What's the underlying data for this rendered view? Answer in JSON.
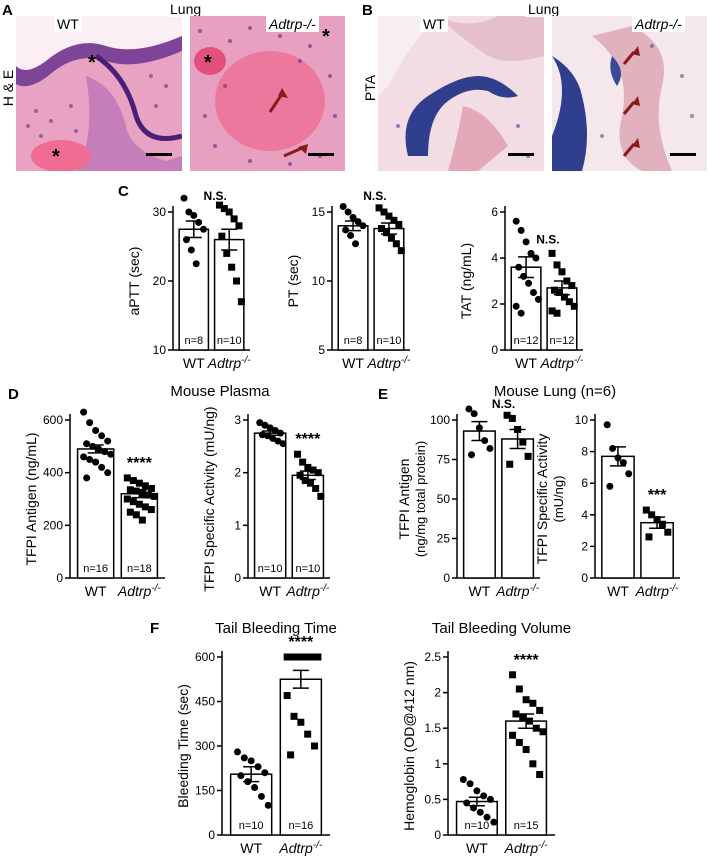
{
  "panels": {
    "A": {
      "letter": "A",
      "wt_label": "WT",
      "tissue_label": "Lung",
      "ko_label": "Adtrp-/-",
      "stain_label": "H & E"
    },
    "B": {
      "letter": "B",
      "wt_label": "WT",
      "tissue_label": "Lung",
      "ko_label": "Adtrp-/-",
      "stain_label": "PTA"
    },
    "C": {
      "letter": "C"
    },
    "D": {
      "letter": "D",
      "group_title": "Mouse Plasma"
    },
    "E": {
      "letter": "E",
      "group_title": "Mouse Lung (n=6)"
    },
    "F": {
      "letter": "F"
    }
  },
  "colors": {
    "he_background": "#e98db4",
    "he_tissue": "#7b3d9a",
    "pta_background": "#f2e4e8",
    "pta_tissue": "#4a5aa0",
    "arrow": "#8b1a1a"
  },
  "chart_data": [
    {
      "id": "aptt",
      "type": "bar",
      "title": "",
      "categories": [
        "WT",
        "Adtrp-/-"
      ],
      "values": [
        27.5,
        26.0
      ],
      "sem": [
        1.2,
        1.5
      ],
      "ylabel": "aPTT (sec)",
      "ylim": [
        10,
        30
      ],
      "yticks": [
        10,
        20,
        30
      ],
      "n_labels": [
        "n=8",
        "n=10"
      ],
      "significance": "N.S.",
      "points": [
        [
          32,
          30,
          29.5,
          28.5,
          27.5,
          26,
          24.5,
          22.5
        ],
        [
          31,
          30.5,
          30,
          29,
          28,
          26.5,
          24,
          22,
          20,
          17
        ]
      ]
    },
    {
      "id": "pt",
      "type": "bar",
      "title": "",
      "categories": [
        "WT",
        "Adtrp-/-"
      ],
      "values": [
        14.0,
        13.8
      ],
      "sem": [
        0.35,
        0.4
      ],
      "ylabel": "PT (sec)",
      "ylim": [
        5,
        15
      ],
      "yticks": [
        5,
        10,
        15
      ],
      "n_labels": [
        "n=8",
        "n=10"
      ],
      "significance": "N.S.",
      "points": [
        [
          15.4,
          15.0,
          14.6,
          14.3,
          14.0,
          13.7,
          13.3,
          12.7
        ],
        [
          15.3,
          15.0,
          14.7,
          14.4,
          14.1,
          13.8,
          13.5,
          13.1,
          12.7,
          12.2
        ]
      ]
    },
    {
      "id": "tat",
      "type": "bar",
      "title": "",
      "categories": [
        "WT",
        "Adtrp-/-"
      ],
      "values": [
        3.6,
        2.7
      ],
      "sem": [
        0.45,
        0.3
      ],
      "ylabel": "TAT (ng/mL)",
      "ylim": [
        0,
        6
      ],
      "yticks": [
        0,
        2,
        4,
        6
      ],
      "n_labels": [
        "n=12",
        "n=12"
      ],
      "significance": "N.S.",
      "points": [
        [
          5.6,
          5.2,
          4.7,
          4.2,
          4.0,
          3.6,
          3.2,
          2.9,
          2.5,
          2.2,
          1.9,
          1.6
        ],
        [
          4.2,
          3.7,
          3.4,
          3.0,
          2.8,
          2.6,
          2.5,
          2.3,
          2.1,
          1.9,
          1.7,
          1.6
        ]
      ]
    },
    {
      "id": "tfpi_plasma_antigen",
      "type": "bar",
      "title": "",
      "categories": [
        "WT",
        "Adtrp-/-"
      ],
      "values": [
        490,
        320
      ],
      "sem": [
        15,
        15
      ],
      "ylabel": "TFPI Antigen (ng/mL)",
      "ylim": [
        0,
        600
      ],
      "yticks": [
        0,
        200,
        400,
        600
      ],
      "n_labels": [
        "n=16",
        "n=18"
      ],
      "significance": "****",
      "points": [
        [
          630,
          590,
          560,
          540,
          520,
          510,
          500,
          490,
          480,
          470,
          460,
          450,
          440,
          420,
          400,
          380
        ],
        [
          380,
          370,
          360,
          350,
          340,
          335,
          330,
          320,
          315,
          310,
          300,
          290,
          280,
          270,
          260,
          250,
          240,
          220
        ]
      ]
    },
    {
      "id": "tfpi_plasma_activity",
      "type": "bar",
      "title": "",
      "categories": [
        "WT",
        "Adtrp-/-"
      ],
      "values": [
        2.75,
        1.95
      ],
      "sem": [
        0.04,
        0.08
      ],
      "ylabel": "TFPI Specific Activity (mU/ng)",
      "ylim": [
        0,
        3
      ],
      "yticks": [
        0,
        1,
        2,
        3
      ],
      "n_labels": [
        "n=10",
        "n=10"
      ],
      "significance": "****",
      "points": [
        [
          2.95,
          2.9,
          2.85,
          2.8,
          2.75,
          2.72,
          2.7,
          2.65,
          2.6,
          2.55
        ],
        [
          2.35,
          2.2,
          2.1,
          2.05,
          2.0,
          1.95,
          1.85,
          1.8,
          1.7,
          1.55
        ]
      ]
    },
    {
      "id": "tfpi_lung_antigen",
      "type": "bar",
      "title": "",
      "categories": [
        "WT",
        "Adtrp-/-"
      ],
      "values": [
        93,
        88
      ],
      "sem": [
        6,
        6
      ],
      "ylabel": "TFPI Antigen",
      "ylabel2": "(ng/mg total protein)",
      "ylim": [
        0,
        100
      ],
      "yticks": [
        0,
        25,
        50,
        75,
        100
      ],
      "n_labels": [
        "",
        ""
      ],
      "significance": "N.S.",
      "points": [
        [
          107,
          104,
          95,
          87,
          82,
          78
        ],
        [
          103,
          101,
          94,
          86,
          77,
          72
        ]
      ]
    },
    {
      "id": "tfpi_lung_activity",
      "type": "bar",
      "title": "",
      "categories": [
        "WT",
        "Adtrp-/-"
      ],
      "values": [
        7.7,
        3.5
      ],
      "sem": [
        0.6,
        0.35
      ],
      "ylabel": "TFPI Specific Activity",
      "ylabel2": "(mU/ng)",
      "ylim": [
        0,
        10
      ],
      "yticks": [
        0,
        2,
        4,
        6,
        8,
        10
      ],
      "n_labels": [
        "",
        ""
      ],
      "significance": "***",
      "points": [
        [
          9.7,
          8.2,
          7.6,
          7.3,
          6.6,
          5.8
        ],
        [
          4.3,
          4.0,
          3.7,
          3.4,
          2.9,
          2.6
        ]
      ]
    },
    {
      "id": "bleeding_time",
      "type": "bar",
      "title": "Tail Bleeding Time",
      "categories": [
        "WT",
        "Adtrp-/-"
      ],
      "values": [
        205,
        525
      ],
      "sem": [
        25,
        30
      ],
      "ylabel": "Bleeding Time (sec)",
      "ylim": [
        0,
        600
      ],
      "yticks": [
        0,
        150,
        300,
        450,
        600
      ],
      "n_labels": [
        "n=10",
        "n=16"
      ],
      "significance": "****",
      "points": [
        [
          280,
          260,
          250,
          230,
          210,
          200,
          180,
          160,
          130,
          100
        ],
        [
          600,
          600,
          600,
          600,
          600,
          600,
          600,
          600,
          600,
          600,
          470,
          400,
          380,
          340,
          300,
          270
        ]
      ]
    },
    {
      "id": "bleeding_volume",
      "type": "bar",
      "title": "Tail Bleeding Volume",
      "categories": [
        "WT",
        "Adtrp-/-"
      ],
      "values": [
        0.47,
        1.6
      ],
      "sem": [
        0.06,
        0.1
      ],
      "ylabel": "Hemoglobin (OD@412 nm)",
      "ylim": [
        0,
        2.5
      ],
      "yticks": [
        0.0,
        0.5,
        1.0,
        1.5,
        2.0,
        2.5
      ],
      "n_labels": [
        "n=10",
        "n=15"
      ],
      "significance": "****",
      "points": [
        [
          0.78,
          0.72,
          0.62,
          0.55,
          0.5,
          0.45,
          0.38,
          0.32,
          0.25,
          0.18
        ],
        [
          2.25,
          2.05,
          1.9,
          1.85,
          1.75,
          1.7,
          1.65,
          1.6,
          1.5,
          1.45,
          1.4,
          1.3,
          1.2,
          1.0,
          0.85
        ]
      ]
    }
  ]
}
